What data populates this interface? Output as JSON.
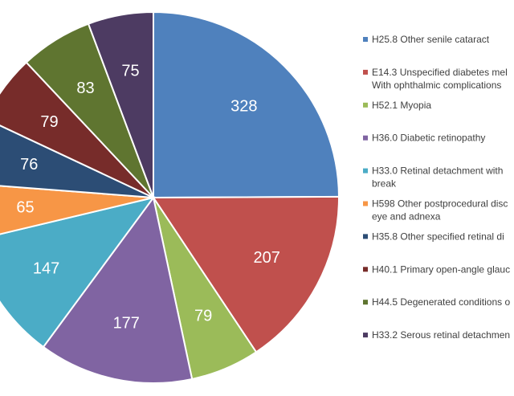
{
  "chart_data": {
    "type": "pie",
    "title": "",
    "legend_position": "right",
    "slices": [
      {
        "label_lines": [
          "H25.8 Other senile cataract"
        ],
        "value": 328,
        "color": "#4f81bd"
      },
      {
        "label_lines": [
          "E14.3 Unspecified diabetes mel",
          "With ophthalmic complications"
        ],
        "value": 207,
        "color": "#c0504d"
      },
      {
        "label_lines": [
          "H52.1 Myopia"
        ],
        "value": 79,
        "color": "#9bbb59"
      },
      {
        "label_lines": [
          "H36.0 Diabetic retinopathy"
        ],
        "value": 177,
        "color": "#8064a2"
      },
      {
        "label_lines": [
          "H33.0 Retinal detachment with",
          "break"
        ],
        "value": 147,
        "color": "#4bacc6"
      },
      {
        "label_lines": [
          "H598 Other postprocedural disc",
          "eye and adnexa"
        ],
        "value": 65,
        "color": "#f79646"
      },
      {
        "label_lines": [
          "H35.8 Other specified retinal di"
        ],
        "value": 76,
        "color": "#2c4d75"
      },
      {
        "label_lines": [
          "H40.1 Primary open-angle glauc"
        ],
        "value": 79,
        "color": "#772c2a"
      },
      {
        "label_lines": [
          "H44.5 Degenerated conditions o"
        ],
        "value": 83,
        "color": "#5f7530"
      },
      {
        "label_lines": [
          "H33.2 Serous retinal detachmen"
        ],
        "value": 75,
        "color": "#4d3b62"
      }
    ]
  }
}
